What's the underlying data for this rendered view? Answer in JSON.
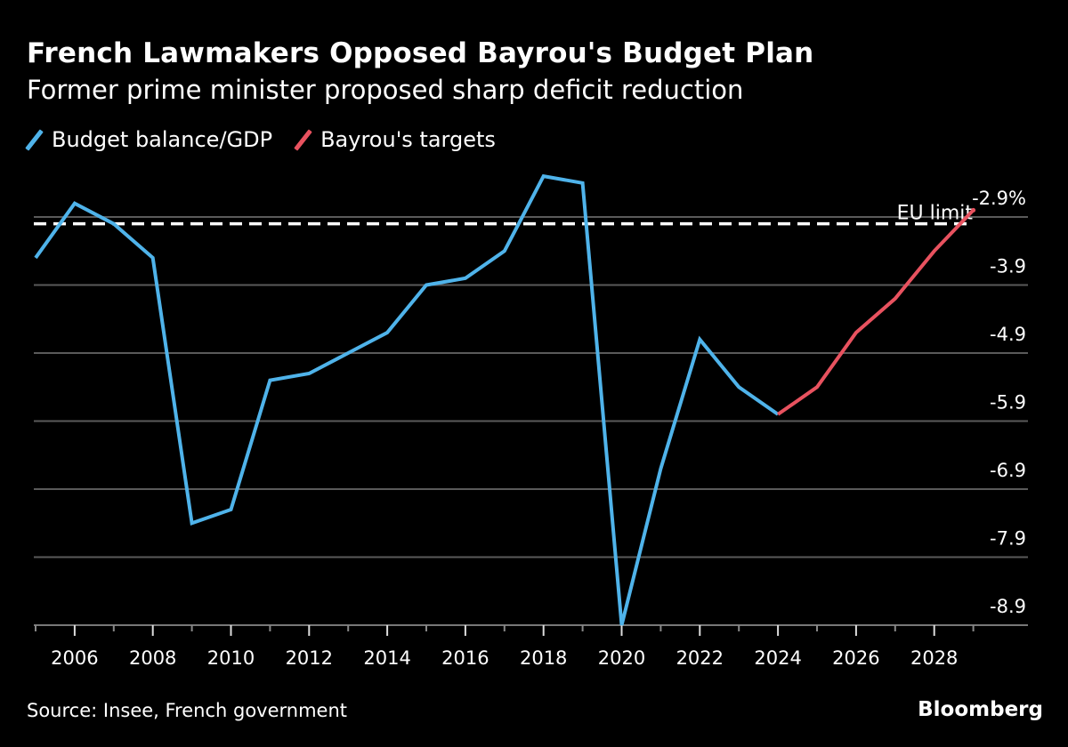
{
  "header": {
    "title": "French Lawmakers Opposed Bayrou's Budget Plan",
    "subtitle": "Former prime minister proposed sharp deficit reduction"
  },
  "legend": [
    {
      "label": "Budget balance/GDP",
      "color": "#4fb3ea"
    },
    {
      "label": "Bayrou's targets",
      "color": "#e8525f"
    }
  ],
  "footer": {
    "source": "Source: Insee, French government",
    "brand": "Bloomberg"
  },
  "chart_data": {
    "type": "line",
    "title": "French Lawmakers Opposed Bayrou's Budget Plan",
    "subtitle": "Former prime minister proposed sharp deficit reduction",
    "xlabel": "",
    "ylabel": "",
    "xlim": [
      2005,
      2030.4
    ],
    "ylim": [
      -9.0,
      -2.2
    ],
    "x_ticks": [
      2006,
      2008,
      2010,
      2012,
      2014,
      2016,
      2018,
      2020,
      2022,
      2024,
      2026,
      2028
    ],
    "x_minor_ticks": [
      2005,
      2007,
      2009,
      2011,
      2013,
      2015,
      2017,
      2019,
      2021,
      2023,
      2025,
      2027,
      2029
    ],
    "y_ticks": [
      -2.9,
      -3.9,
      -4.9,
      -5.9,
      -6.9,
      -7.9,
      -8.9
    ],
    "y_tick_labels": [
      "-2.9%",
      "-3.9",
      "-4.9",
      "-5.9",
      "-6.9",
      "-7.9",
      "-8.9"
    ],
    "grid": true,
    "legend_position": "top-left",
    "series": [
      {
        "name": "Budget balance/GDP",
        "color": "#4fb3ea",
        "x": [
          2005,
          2006,
          2007,
          2008,
          2009,
          2010,
          2011,
          2012,
          2013,
          2014,
          2015,
          2016,
          2017,
          2018,
          2019,
          2020,
          2021,
          2022,
          2023,
          2024
        ],
        "values": [
          -3.5,
          -2.7,
          -3.0,
          -3.5,
          -7.4,
          -7.2,
          -5.3,
          -5.2,
          -4.9,
          -4.6,
          -3.9,
          -3.8,
          -3.4,
          -2.3,
          -2.4,
          -8.9,
          -6.6,
          -4.7,
          -5.4,
          -5.8
        ]
      },
      {
        "name": "Bayrou's targets",
        "color": "#e8525f",
        "x": [
          2024,
          2025,
          2026,
          2027,
          2028,
          2029
        ],
        "values": [
          -5.8,
          -5.4,
          -4.6,
          -4.1,
          -3.4,
          -2.8
        ]
      }
    ],
    "reference_lines": [
      {
        "label": "EU limit",
        "value": -3.0,
        "style": "dashed",
        "color": "#ffffff"
      }
    ]
  }
}
